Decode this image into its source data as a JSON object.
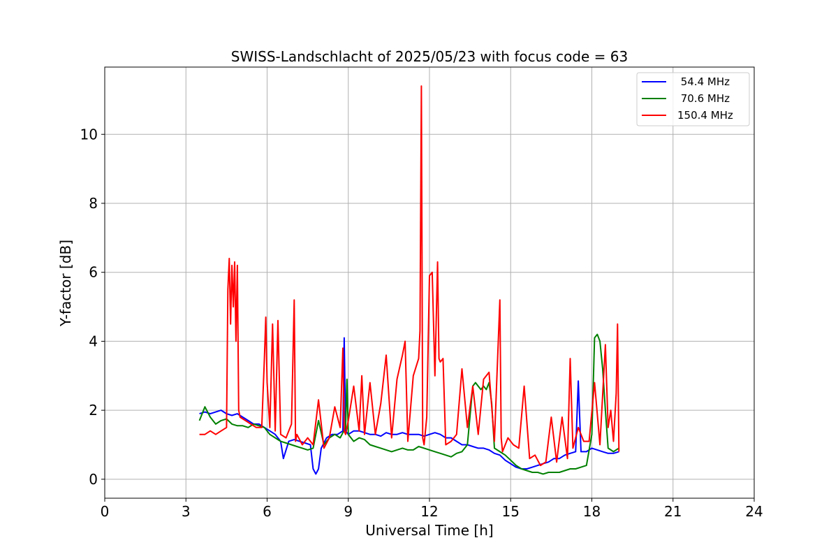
{
  "chart_data": {
    "type": "line",
    "title": "SWISS-Landschlacht of 2025/05/23 with focus code = 63",
    "xlabel": "Universal Time [h]",
    "ylabel": "Y-factor [dB]",
    "xlim": [
      0,
      24
    ],
    "ylim": [
      -0.55,
      11.95
    ],
    "xticks": [
      0,
      3,
      6,
      9,
      12,
      15,
      18,
      21,
      24
    ],
    "yticks": [
      0,
      2,
      4,
      6,
      8,
      10
    ],
    "grid": true,
    "legend_position": "top-right",
    "series": [
      {
        "name": " 54.4 MHz",
        "color": "#0000ff",
        "x": [
          3.5,
          3.7,
          3.9,
          4.1,
          4.3,
          4.5,
          4.7,
          4.9,
          5.1,
          5.3,
          5.5,
          5.7,
          5.9,
          6.1,
          6.3,
          6.5,
          6.6,
          6.8,
          7.0,
          7.2,
          7.4,
          7.6,
          7.7,
          7.8,
          7.9,
          8.0,
          8.2,
          8.4,
          8.6,
          8.8,
          8.85,
          8.9,
          9.0,
          9.2,
          9.4,
          9.6,
          9.8,
          10.0,
          10.2,
          10.4,
          10.6,
          10.8,
          11.0,
          11.2,
          11.4,
          11.6,
          11.8,
          12.0,
          12.2,
          12.4,
          12.6,
          12.8,
          13.0,
          13.2,
          13.4,
          13.6,
          13.8,
          14.0,
          14.2,
          14.4,
          14.6,
          14.8,
          15.0,
          15.2,
          15.4,
          15.6,
          15.8,
          16.0,
          16.2,
          16.4,
          16.6,
          16.8,
          17.0,
          17.2,
          17.4,
          17.5,
          17.6,
          17.8,
          18.0,
          18.2,
          18.4,
          18.6,
          18.8,
          19.0
        ],
        "y": [
          1.9,
          1.95,
          1.9,
          1.95,
          2.0,
          1.9,
          1.85,
          1.9,
          1.8,
          1.7,
          1.6,
          1.6,
          1.5,
          1.4,
          1.3,
          1.1,
          0.6,
          1.1,
          1.15,
          1.1,
          1.05,
          1.0,
          0.3,
          0.15,
          0.3,
          0.9,
          1.2,
          1.3,
          1.3,
          1.4,
          4.1,
          1.4,
          1.3,
          1.4,
          1.4,
          1.35,
          1.3,
          1.3,
          1.25,
          1.35,
          1.3,
          1.3,
          1.35,
          1.3,
          1.3,
          1.3,
          1.25,
          1.3,
          1.35,
          1.3,
          1.2,
          1.2,
          1.1,
          1.0,
          1.0,
          0.95,
          0.9,
          0.9,
          0.85,
          0.75,
          0.7,
          0.55,
          0.45,
          0.35,
          0.3,
          0.3,
          0.35,
          0.4,
          0.45,
          0.5,
          0.6,
          0.6,
          0.7,
          0.75,
          0.8,
          2.85,
          0.8,
          0.8,
          0.9,
          0.85,
          0.8,
          0.75,
          0.75,
          0.8
        ]
      },
      {
        "name": " 70.6 MHz",
        "color": "#008000",
        "x": [
          3.5,
          3.7,
          3.9,
          4.1,
          4.3,
          4.5,
          4.7,
          4.9,
          5.1,
          5.3,
          5.5,
          5.7,
          5.9,
          6.1,
          6.3,
          6.5,
          6.7,
          6.9,
          7.1,
          7.3,
          7.5,
          7.7,
          7.9,
          8.1,
          8.3,
          8.5,
          8.7,
          8.9,
          8.95,
          9.0,
          9.2,
          9.4,
          9.6,
          9.8,
          10.0,
          10.2,
          10.4,
          10.6,
          10.8,
          11.0,
          11.2,
          11.4,
          11.6,
          11.8,
          12.0,
          12.2,
          12.4,
          12.6,
          12.8,
          13.0,
          13.2,
          13.4,
          13.6,
          13.7,
          13.8,
          13.9,
          14.0,
          14.1,
          14.2,
          14.3,
          14.4,
          14.6,
          14.8,
          15.0,
          15.2,
          15.4,
          15.6,
          15.8,
          16.0,
          16.2,
          16.4,
          16.6,
          16.8,
          17.0,
          17.2,
          17.4,
          17.6,
          17.8,
          18.0,
          18.1,
          18.2,
          18.3,
          18.4,
          18.5,
          18.6,
          18.8,
          19.0
        ],
        "y": [
          1.7,
          2.1,
          1.8,
          1.6,
          1.7,
          1.75,
          1.6,
          1.55,
          1.55,
          1.5,
          1.6,
          1.55,
          1.5,
          1.3,
          1.2,
          1.1,
          1.05,
          1.0,
          0.95,
          0.9,
          0.85,
          0.9,
          1.7,
          1.0,
          1.2,
          1.3,
          1.2,
          1.5,
          2.9,
          1.3,
          1.1,
          1.2,
          1.15,
          1.0,
          0.95,
          0.9,
          0.85,
          0.8,
          0.85,
          0.9,
          0.85,
          0.85,
          0.95,
          0.9,
          0.85,
          0.8,
          0.75,
          0.7,
          0.65,
          0.75,
          0.8,
          1.0,
          2.7,
          2.8,
          2.7,
          2.6,
          2.7,
          2.6,
          2.8,
          2.2,
          0.9,
          0.8,
          0.7,
          0.55,
          0.4,
          0.3,
          0.25,
          0.2,
          0.2,
          0.15,
          0.2,
          0.2,
          0.2,
          0.25,
          0.3,
          0.3,
          0.35,
          0.4,
          1.3,
          4.1,
          4.2,
          4.0,
          3.2,
          2.0,
          0.9,
          0.8,
          0.9
        ]
      },
      {
        "name": "150.4 MHz",
        "color": "#ff0000",
        "x": [
          3.5,
          3.7,
          3.9,
          4.1,
          4.3,
          4.5,
          4.55,
          4.6,
          4.65,
          4.7,
          4.75,
          4.8,
          4.85,
          4.9,
          4.95,
          5.0,
          5.2,
          5.4,
          5.6,
          5.8,
          5.9,
          5.95,
          6.0,
          6.1,
          6.2,
          6.3,
          6.4,
          6.5,
          6.7,
          6.9,
          7.0,
          7.05,
          7.1,
          7.3,
          7.5,
          7.7,
          7.9,
          8.1,
          8.3,
          8.5,
          8.7,
          8.8,
          8.85,
          8.9,
          9.0,
          9.2,
          9.4,
          9.5,
          9.6,
          9.8,
          10.0,
          10.2,
          10.4,
          10.6,
          10.8,
          11.0,
          11.1,
          11.2,
          11.4,
          11.6,
          11.65,
          11.7,
          11.75,
          11.8,
          11.9,
          12.0,
          12.1,
          12.2,
          12.3,
          12.35,
          12.4,
          12.5,
          12.6,
          12.8,
          13.0,
          13.2,
          13.4,
          13.6,
          13.8,
          14.0,
          14.2,
          14.4,
          14.6,
          14.65,
          14.7,
          14.9,
          15.1,
          15.3,
          15.5,
          15.7,
          15.9,
          16.1,
          16.3,
          16.5,
          16.7,
          16.9,
          17.1,
          17.2,
          17.3,
          17.5,
          17.7,
          17.9,
          18.1,
          18.3,
          18.5,
          18.6,
          18.7,
          18.8,
          18.9,
          18.95,
          19.0
        ],
        "y": [
          1.3,
          1.3,
          1.4,
          1.3,
          1.4,
          1.5,
          5.5,
          6.4,
          4.5,
          6.2,
          5.0,
          6.3,
          4.0,
          6.2,
          2.0,
          1.8,
          1.7,
          1.6,
          1.5,
          1.5,
          3.5,
          4.7,
          2.8,
          1.5,
          4.5,
          1.4,
          4.6,
          1.3,
          1.2,
          1.6,
          5.2,
          1.1,
          1.3,
          1.0,
          1.2,
          1.0,
          2.3,
          0.9,
          1.2,
          2.1,
          1.5,
          3.8,
          1.4,
          1.3,
          1.7,
          2.7,
          1.4,
          3.0,
          1.3,
          2.8,
          1.3,
          2.2,
          3.6,
          1.2,
          2.9,
          3.6,
          4.0,
          1.1,
          3.0,
          3.5,
          4.3,
          11.4,
          1.2,
          1.0,
          1.8,
          5.9,
          6.0,
          3.0,
          6.3,
          3.5,
          3.4,
          3.5,
          1.0,
          1.1,
          1.3,
          3.2,
          1.5,
          2.7,
          1.3,
          2.9,
          3.1,
          1.1,
          5.2,
          1.2,
          0.8,
          1.2,
          1.0,
          0.9,
          2.7,
          0.6,
          0.7,
          0.4,
          0.5,
          1.8,
          0.5,
          1.8,
          0.6,
          3.5,
          0.9,
          1.5,
          1.1,
          1.1,
          2.8,
          1.0,
          3.9,
          1.5,
          2.0,
          1.1,
          2.5,
          4.5,
          0.8
        ]
      }
    ]
  }
}
